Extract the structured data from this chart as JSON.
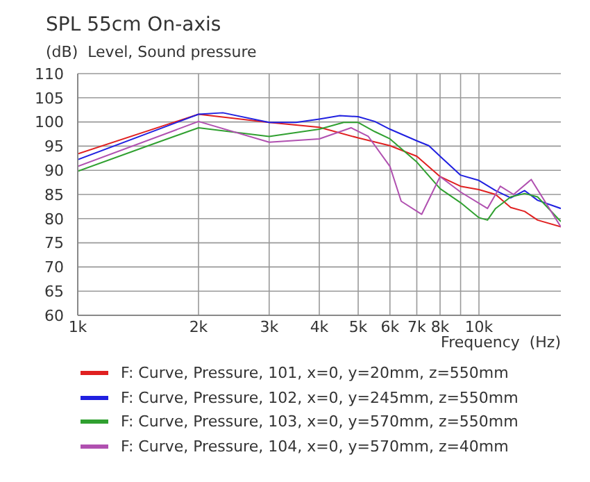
{
  "chart_data": {
    "type": "line",
    "title": "SPL 55cm On-axis",
    "ylabel": "(dB)  Level, Sound pressure",
    "xlabel": "Frequency  (Hz)",
    "log": "x",
    "grid": true,
    "legend": "bottom",
    "xlim": [
      1000,
      16000
    ],
    "ylim": [
      60,
      110
    ],
    "xticks": [
      {
        "value": 1000,
        "label": "1k"
      },
      {
        "value": 2000,
        "label": "2k"
      },
      {
        "value": 3000,
        "label": "3k"
      },
      {
        "value": 4000,
        "label": "4k"
      },
      {
        "value": 5000,
        "label": "5k"
      },
      {
        "value": 6000,
        "label": "6k"
      },
      {
        "value": 7000,
        "label": "7k"
      },
      {
        "value": 8000,
        "label": "8k"
      },
      {
        "value": 9000,
        "label": null
      },
      {
        "value": 10000,
        "label": "10k"
      }
    ],
    "yticks": [
      60,
      65,
      70,
      75,
      80,
      85,
      90,
      95,
      100,
      105,
      110
    ],
    "series": [
      {
        "name": "F: Curve, Pressure, 101, x=0, y=20mm, z=550mm",
        "color": "#e02020",
        "x": [
          1000,
          2000,
          3000,
          4000,
          5000,
          6000,
          7000,
          8000,
          9000,
          10000,
          11000,
          12000,
          13000,
          14000,
          16000
        ],
        "values": [
          93.4,
          101.6,
          99.9,
          98.9,
          96.7,
          95.1,
          92.9,
          88.7,
          86.7,
          86.0,
          85.0,
          82.3,
          81.5,
          79.7,
          78.3
        ]
      },
      {
        "name": "F: Curve, Pressure, 102, x=0, y=245mm, z=550mm",
        "color": "#2020e0",
        "x": [
          1000,
          2000,
          2300,
          3000,
          3500,
          4000,
          4500,
          5000,
          5500,
          6000,
          7000,
          7500,
          8000,
          9000,
          10000,
          11000,
          12000,
          13000,
          14000,
          16000
        ],
        "values": [
          92.2,
          101.6,
          101.9,
          99.9,
          99.9,
          100.6,
          101.3,
          101.1,
          100.1,
          98.5,
          96.1,
          95.1,
          92.9,
          89.0,
          87.9,
          85.8,
          84.3,
          85.8,
          83.8,
          82.1
        ]
      },
      {
        "name": "F: Curve, Pressure, 103, x=0, y=570mm, z=550mm",
        "color": "#30a030",
        "x": [
          1000,
          1500,
          2000,
          3000,
          4000,
          4600,
          5000,
          5500,
          6000,
          7000,
          8000,
          9000,
          10000,
          10500,
          11000,
          12000,
          13000,
          14000,
          16000
        ],
        "values": [
          89.8,
          95.1,
          98.8,
          97.0,
          98.5,
          99.9,
          99.9,
          98.0,
          96.5,
          91.7,
          86.2,
          83.3,
          80.2,
          79.7,
          82.1,
          84.5,
          85.2,
          84.5,
          79.4
        ]
      },
      {
        "name": "F: Curve, Pressure, 104, x=0, y=570mm, z=40mm",
        "color": "#b050b0",
        "x": [
          1000,
          2000,
          3000,
          4000,
          4800,
          5300,
          6000,
          6400,
          7200,
          8000,
          9000,
          10500,
          11300,
          12200,
          13500,
          16000
        ],
        "values": [
          90.8,
          100.1,
          95.8,
          96.5,
          98.8,
          97.0,
          90.8,
          83.6,
          80.9,
          88.7,
          85.5,
          82.1,
          86.7,
          85.0,
          88.1,
          78.3
        ]
      }
    ]
  }
}
